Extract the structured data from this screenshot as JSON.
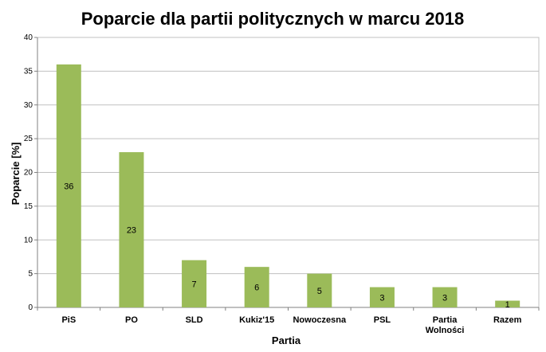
{
  "chart_data": {
    "type": "bar",
    "title": "Poparcie  dla partii  politycznych  w marcu 2018",
    "xlabel": "Partia",
    "ylabel": "Poparcie [%]",
    "categories": [
      [
        "PiS"
      ],
      [
        "PO"
      ],
      [
        "SLD"
      ],
      [
        "Kukiz'15"
      ],
      [
        "Nowoczesna"
      ],
      [
        "PSL"
      ],
      [
        "Partia",
        "Wolności"
      ],
      [
        "Razem"
      ]
    ],
    "values": [
      36,
      23,
      7,
      6,
      5,
      3,
      3,
      1
    ],
    "data_labels": [
      "36",
      "23",
      "7",
      "6",
      "5",
      "3",
      "3",
      "1"
    ],
    "ylim": [
      0,
      40
    ],
    "yticks": [
      "0",
      "5",
      "10",
      "15",
      "20",
      "25",
      "30",
      "35",
      "40"
    ],
    "grid": true,
    "bar_color": "#9BBB59"
  }
}
